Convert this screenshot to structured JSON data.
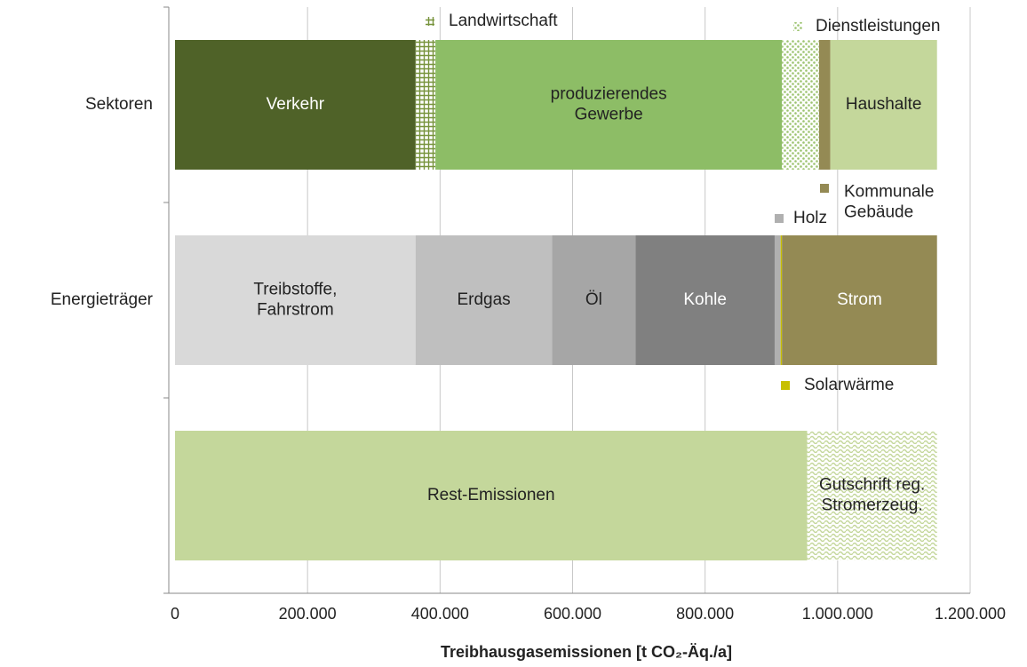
{
  "chart_data": {
    "type": "stacked_bar_horizontal",
    "categories": [
      "Sektoren",
      "Energieträger",
      null
    ],
    "xlabel": "Treibhausgasemissionen [t CO₂-Äq./a]",
    "xlim": [
      0,
      1200000
    ],
    "xticks": [
      0,
      {
        "value": 200000,
        "label": "200.000"
      },
      {
        "value": 400000,
        "label": "400.000"
      },
      {
        "value": 600000,
        "label": "600.000"
      },
      {
        "value": 800000,
        "label": "800.000"
      },
      {
        "value": 1000000,
        "label": "1.000.000"
      },
      {
        "value": 1200000,
        "label": "1.200.000"
      }
    ],
    "grid": true,
    "series": [
      {
        "name": "Verkehr",
        "color": "#4f6228",
        "label_color": "#ffffff",
        "values": [
          363000,
          null,
          null
        ]
      },
      {
        "name": "Landwirtschaft",
        "color": "#77933c",
        "pattern": "grid",
        "label": "outside",
        "values": [
          30000,
          null,
          null
        ]
      },
      {
        "name": "produzierendes\nGewerbe",
        "color": "#8dbd66",
        "label_color": "#222222",
        "values": [
          523000,
          null,
          null
        ]
      },
      {
        "name": "Dienstleistungen",
        "color": "#b5d18d",
        "pattern": "dots",
        "label": "outside",
        "values": [
          56000,
          null,
          null
        ]
      },
      {
        "name": "Kommunale\nGebäude",
        "color": "#948a54",
        "label": "outside",
        "values": [
          17000,
          null,
          null
        ]
      },
      {
        "name": "Haushalte",
        "color": "#c4d79b",
        "label_color": "#222222",
        "values": [
          161000,
          null,
          null
        ]
      },
      {
        "name": "Treibstoffe,\nFahrstrom",
        "color": "#d9d9d9",
        "label_color": "#222222",
        "values": [
          null,
          363000,
          null
        ]
      },
      {
        "name": "Erdgas",
        "color": "#bfbfbf",
        "label_color": "#222222",
        "values": [
          null,
          206000,
          null
        ]
      },
      {
        "name": "Öl",
        "color": "#a6a6a6",
        "label_color": "#222222",
        "values": [
          null,
          126000,
          null
        ]
      },
      {
        "name": "Kohle",
        "color": "#808080",
        "label_color": "#ffffff",
        "values": [
          null,
          210000,
          null
        ]
      },
      {
        "name": "Holz",
        "color": "#b0b0b0",
        "label": "outside",
        "values": [
          null,
          9000,
          null
        ]
      },
      {
        "name": "Solarwärme",
        "color": "#c8c000",
        "label": "outside",
        "values": [
          null,
          2000,
          null
        ]
      },
      {
        "name": "Strom",
        "color": "#948a54",
        "label_color": "#ffffff",
        "values": [
          null,
          234000,
          null
        ]
      },
      {
        "name": "Rest-Emissionen",
        "color": "#c4d79b",
        "label_color": "#222222",
        "values": [
          null,
          null,
          954000
        ]
      },
      {
        "name": "Gutschrift reg.\nStromerzeug.",
        "color": "#c4d79b",
        "pattern": "waves",
        "label_color": "#222222",
        "values": [
          null,
          null,
          196000
        ]
      }
    ]
  }
}
